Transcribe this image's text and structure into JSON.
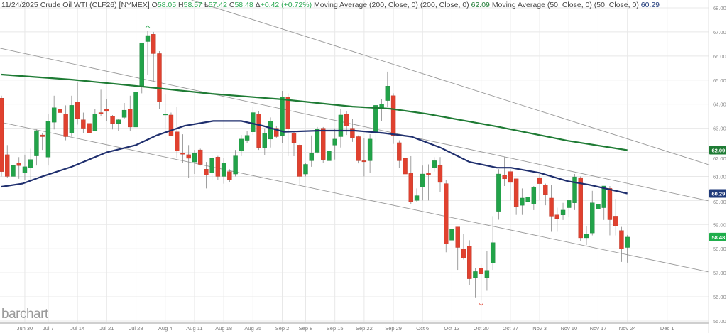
{
  "header": {
    "date": "11/24/2025",
    "symbol": "Crude Oil WTI (CLF26) [NYMEX]",
    "open_label": "O",
    "open": "58.05",
    "high_label": "H",
    "high": "58.57",
    "low_label": "L",
    "low": "57.42",
    "close_label": "C",
    "close": "58.48",
    "change_label": "Δ",
    "change": "+0.42 (+0.72%)",
    "ma200_label": "Moving Average (200, Close, 0)",
    "ma200_params": "(200, Close, 0)",
    "ma200_value": "62.09",
    "ma50_label": "Moving Average (50, Close, 0)",
    "ma50_params": "(50, Close, 0)",
    "ma50_value": "60.29"
  },
  "logo": "barchart",
  "colors": {
    "up": "#22a349",
    "down": "#e0412f",
    "ma200": "#1e7b34",
    "ma50": "#1f2f6e",
    "last_price_badge": "#1fae4b",
    "trendline": "#999999",
    "grid": "#e8e8e8"
  },
  "chart_data": {
    "type": "candlestick",
    "title": "Crude Oil WTI (CLF26) [NYMEX]",
    "ylim": [
      55,
      68
    ],
    "yticks": [
      "68.00",
      "67.00",
      "66.00",
      "65.00",
      "64.00",
      "63.00",
      "62.00",
      "61.00",
      "60.00",
      "59.00",
      "58.00",
      "57.00",
      "56.00",
      "55.00"
    ],
    "xticks": [
      "Jun 30",
      "Jul 7",
      "Jul 14",
      "Jul 21",
      "Jul 28",
      "Aug 4",
      "Aug 11",
      "Aug 18",
      "Aug 25",
      "Sep 2",
      "Sep 8",
      "Sep 15",
      "Sep 22",
      "Sep 29",
      "Oct 6",
      "Oct 13",
      "Oct 20",
      "Oct 27",
      "Nov 3",
      "Nov 10",
      "Nov 17",
      "Nov 24",
      "Dec 1"
    ],
    "grid": true,
    "ohlc_fields": [
      "open",
      "high",
      "low",
      "close"
    ],
    "ohlc": [
      [
        64.25,
        64.35,
        61.0,
        61.2
      ],
      [
        61.9,
        62.3,
        60.95,
        61.0
      ],
      [
        61.0,
        62.2,
        60.9,
        61.45
      ],
      [
        61.55,
        61.8,
        60.9,
        61.45
      ],
      [
        61.15,
        61.9,
        60.85,
        61.4
      ],
      [
        61.35,
        62.15,
        60.8,
        61.7
      ],
      [
        61.85,
        62.95,
        61.45,
        62.9
      ],
      [
        62.72,
        62.8,
        62.1,
        62.65
      ],
      [
        61.8,
        63.6,
        61.45,
        63.3
      ],
      [
        63.25,
        64.35,
        62.95,
        63.85
      ],
      [
        63.8,
        64.3,
        63.4,
        63.65
      ],
      [
        63.6,
        63.95,
        62.5,
        62.65
      ],
      [
        62.8,
        64.35,
        62.65,
        63.95
      ],
      [
        64.1,
        64.9,
        63.15,
        63.4
      ],
      [
        63.35,
        63.65,
        62.8,
        63.0
      ],
      [
        63.2,
        63.3,
        62.35,
        62.8
      ],
      [
        62.9,
        63.8,
        62.9,
        63.6
      ],
      [
        63.65,
        64.6,
        63.5,
        63.6
      ],
      [
        63.8,
        64.2,
        63.3,
        63.7
      ],
      [
        63.5,
        63.55,
        62.95,
        63.2
      ],
      [
        63.2,
        63.4,
        62.9,
        63.35
      ],
      [
        63.45,
        64.05,
        63.4,
        63.75
      ],
      [
        63.8,
        64.35,
        62.9,
        63.05
      ],
      [
        63.05,
        64.5,
        62.9,
        64.5
      ],
      [
        64.75,
        66.55,
        64.45,
        66.55
      ],
      [
        66.6,
        67.05,
        65.2,
        66.85
      ],
      [
        66.9,
        67.0,
        64.95,
        66.1
      ],
      [
        66.1,
        66.2,
        63.8,
        64.1
      ],
      [
        63.55,
        64.4,
        62.95,
        63.6
      ],
      [
        63.55,
        63.65,
        62.7,
        62.7
      ],
      [
        62.85,
        63.9,
        61.77,
        62.05
      ],
      [
        61.98,
        62.75,
        61.55,
        61.92
      ],
      [
        61.9,
        62.3,
        60.95,
        61.75
      ],
      [
        61.6,
        62.1,
        61.1,
        61.95
      ],
      [
        62.1,
        62.15,
        61.45,
        61.5
      ],
      [
        61.3,
        61.6,
        60.5,
        61.05
      ],
      [
        61.15,
        61.9,
        60.85,
        61.75
      ],
      [
        61.8,
        61.85,
        60.85,
        61.0
      ],
      [
        61.0,
        61.75,
        60.7,
        61.55
      ],
      [
        61.2,
        61.3,
        60.75,
        60.85
      ],
      [
        61.1,
        62.1,
        61.0,
        61.85
      ],
      [
        62.05,
        62.72,
        61.84,
        62.55
      ],
      [
        62.5,
        62.9,
        62.4,
        62.7
      ],
      [
        62.85,
        63.9,
        62.72,
        63.65
      ],
      [
        63.6,
        63.7,
        62.1,
        62.2
      ],
      [
        62.2,
        63.0,
        61.87,
        62.8
      ],
      [
        62.55,
        63.45,
        62.2,
        63.3
      ],
      [
        63.0,
        63.1,
        62.6,
        62.65
      ],
      [
        62.7,
        64.55,
        62.4,
        64.3
      ],
      [
        64.3,
        64.45,
        61.84,
        62.98
      ],
      [
        62.8,
        62.85,
        61.84,
        62.4
      ],
      [
        62.3,
        62.35,
        60.66,
        61.0
      ],
      [
        61.1,
        61.55,
        61.0,
        61.5
      ],
      [
        61.65,
        62.7,
        61.4,
        61.95
      ],
      [
        62.0,
        63.05,
        61.95,
        62.95
      ],
      [
        63.0,
        63.05,
        61.55,
        61.7
      ],
      [
        61.65,
        63.3,
        60.95,
        62.05
      ],
      [
        62.3,
        63.0,
        61.7,
        62.55
      ],
      [
        62.65,
        63.8,
        62.2,
        63.55
      ],
      [
        63.6,
        63.7,
        62.72,
        63.1
      ],
      [
        63.0,
        63.4,
        62.43,
        62.6
      ],
      [
        62.65,
        62.7,
        61.54,
        61.65
      ],
      [
        61.65,
        62.6,
        61.0,
        61.62
      ],
      [
        61.65,
        62.75,
        61.15,
        62.55
      ],
      [
        62.8,
        63.95,
        62.43,
        63.95
      ],
      [
        63.8,
        64.2,
        63.3,
        64.0
      ],
      [
        64.15,
        65.35,
        63.9,
        64.75
      ],
      [
        64.35,
        64.45,
        62.35,
        62.7
      ],
      [
        62.4,
        62.5,
        61.35,
        61.65
      ],
      [
        61.75,
        62.13,
        60.8,
        61.1
      ],
      [
        61.15,
        61.84,
        59.85,
        59.95
      ],
      [
        60.0,
        60.5,
        59.95,
        60.2
      ],
      [
        60.55,
        61.45,
        60.0,
        61.1
      ],
      [
        61.15,
        61.5,
        60.0,
        61.05
      ],
      [
        61.35,
        61.8,
        61.2,
        61.65
      ],
      [
        61.45,
        61.8,
        60.36,
        60.75
      ],
      [
        60.7,
        60.85,
        57.85,
        58.2
      ],
      [
        58.35,
        59.1,
        58.2,
        58.8
      ],
      [
        58.9,
        58.9,
        57.12,
        58.05
      ],
      [
        58.0,
        58.6,
        57.55,
        57.6
      ],
      [
        58.1,
        58.35,
        56.5,
        56.75
      ],
      [
        56.8,
        57.2,
        55.95,
        57.05
      ],
      [
        57.2,
        57.35,
        55.85,
        56.95
      ],
      [
        56.8,
        57.9,
        56.25,
        57.1
      ],
      [
        57.4,
        59.35,
        57.12,
        58.25
      ],
      [
        59.55,
        61.3,
        59.2,
        61.1
      ],
      [
        61.05,
        61.8,
        60.6,
        60.9
      ],
      [
        61.2,
        61.3,
        60.0,
        60.75
      ],
      [
        60.9,
        60.9,
        59.4,
        59.75
      ],
      [
        59.8,
        60.5,
        59.4,
        60.1
      ],
      [
        59.95,
        60.36,
        59.3,
        60.15
      ],
      [
        59.85,
        60.6,
        59.6,
        60.55
      ],
      [
        60.95,
        61.1,
        60.0,
        60.7
      ],
      [
        60.65,
        60.7,
        59.8,
        60.25
      ],
      [
        60.1,
        60.65,
        58.7,
        59.35
      ],
      [
        59.4,
        59.7,
        58.7,
        59.25
      ],
      [
        59.4,
        59.9,
        59.19,
        59.6
      ],
      [
        59.7,
        59.9,
        59.3,
        60.0
      ],
      [
        59.9,
        61.1,
        59.6,
        60.98
      ],
      [
        60.95,
        61.0,
        58.3,
        58.45
      ],
      [
        58.45,
        58.95,
        58.15,
        58.6
      ],
      [
        58.65,
        60.4,
        58.55,
        59.9
      ],
      [
        59.65,
        60.25,
        59.19,
        59.85
      ],
      [
        59.7,
        60.6,
        59.19,
        60.6
      ],
      [
        60.5,
        60.6,
        58.55,
        59.2
      ],
      [
        59.35,
        60.07,
        58.55,
        58.95
      ],
      [
        58.75,
        58.9,
        57.45,
        58.0
      ],
      [
        58.05,
        58.57,
        57.42,
        58.48
      ]
    ],
    "ma200": [
      [
        0,
        65.23
      ],
      [
        12,
        65.02
      ],
      [
        24,
        64.73
      ],
      [
        36,
        64.43
      ],
      [
        48,
        64.2
      ],
      [
        60,
        63.9
      ],
      [
        66.5,
        63.81
      ],
      [
        72.6,
        63.6
      ],
      [
        84.7,
        63.07
      ],
      [
        96.8,
        62.48
      ],
      [
        107,
        62.09
      ]
    ],
    "ma50": [
      [
        0,
        60.57
      ],
      [
        3.6,
        60.7
      ],
      [
        7,
        61.0
      ],
      [
        12,
        61.4
      ],
      [
        18,
        62.0
      ],
      [
        23,
        62.3
      ],
      [
        26.5,
        62.7
      ],
      [
        31.3,
        63.1
      ],
      [
        36.2,
        63.3
      ],
      [
        41,
        63.3
      ],
      [
        44.7,
        63.1
      ],
      [
        48.3,
        62.85
      ],
      [
        54.4,
        62.9
      ],
      [
        60.4,
        62.9
      ],
      [
        65.3,
        62.8
      ],
      [
        70.1,
        62.65
      ],
      [
        75,
        62.2
      ],
      [
        80,
        61.6
      ],
      [
        84.7,
        61.36
      ],
      [
        87.1,
        61.36
      ],
      [
        92,
        61.15
      ],
      [
        96.8,
        60.8
      ],
      [
        100.5,
        60.65
      ],
      [
        107,
        60.29
      ]
    ],
    "trendlines": [
      [
        [
          32.5,
          68.32
        ],
        [
          121,
          61.48
        ]
      ],
      [
        [
          -0.2,
          66.32
        ],
        [
          121,
          59.98
        ]
      ],
      [
        [
          -0.2,
          63.25
        ],
        [
          121,
          57.03
        ]
      ]
    ],
    "price_badges": [
      {
        "value": "62.09",
        "price": 62.09,
        "color": "#1e7b34"
      },
      {
        "value": "60.29",
        "price": 60.29,
        "color": "#1f3a7a"
      },
      {
        "value": "58.48",
        "price": 58.48,
        "color": "#1fae4b"
      }
    ],
    "high_marker": {
      "bar": 25,
      "price": 67.05
    },
    "low_marker": {
      "bar": 82,
      "price": 55.85
    }
  }
}
